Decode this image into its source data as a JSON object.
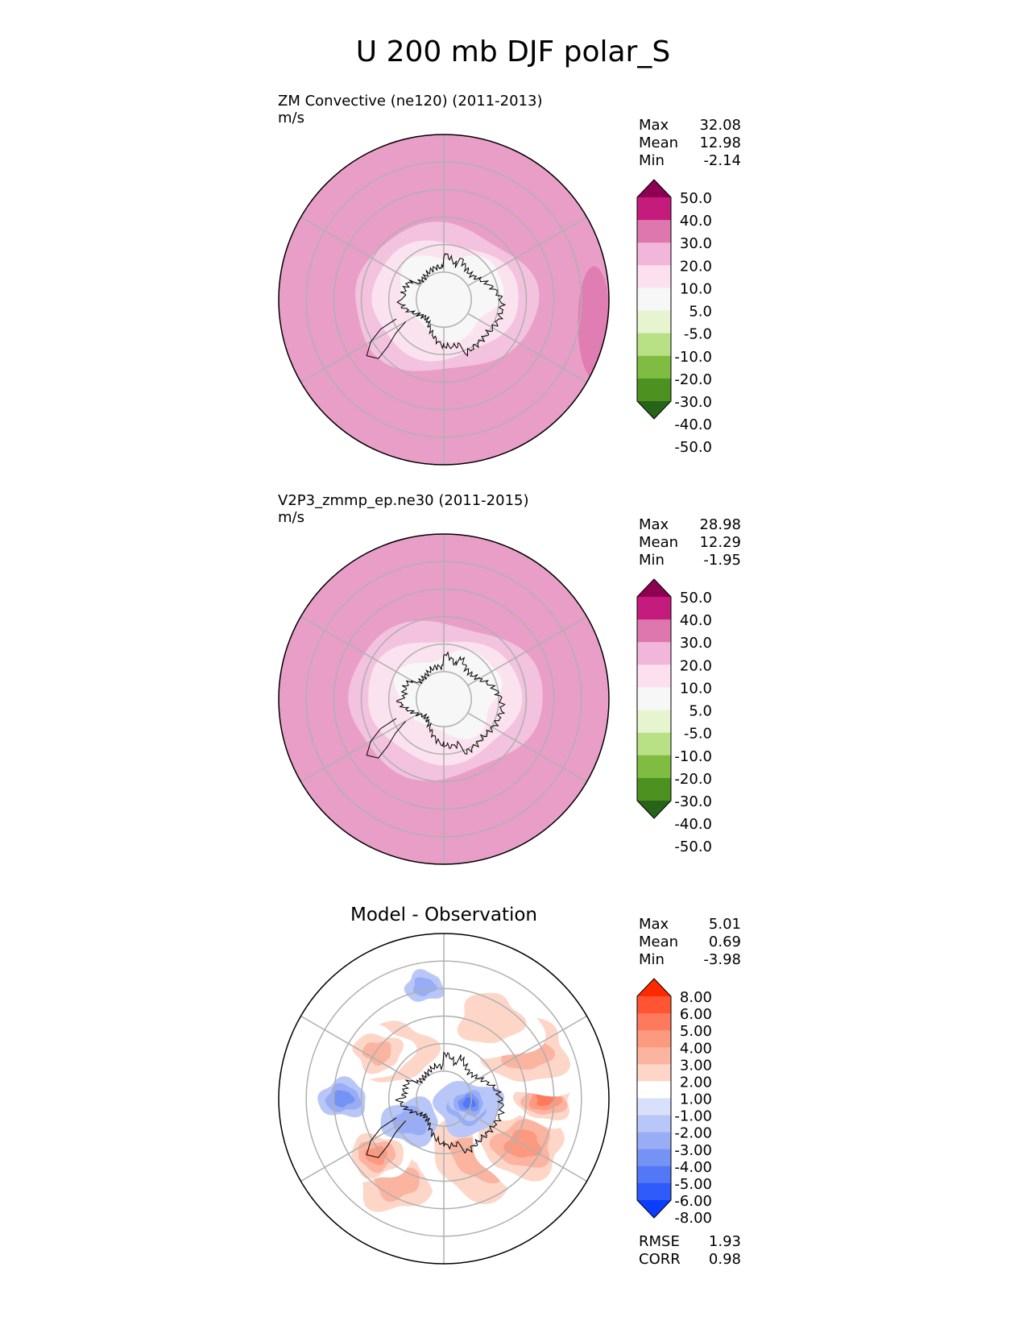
{
  "figure": {
    "title": "U 200 mb DJF polar_S"
  },
  "chart_data": [
    {
      "type": "heatmap",
      "projection": "south-polar-stereographic",
      "title": "ZM Convective (ne120) (2011-2013)",
      "units": "m/s",
      "stats": [
        {
          "label": "Max",
          "value": "32.08"
        },
        {
          "label": "Mean",
          "value": "12.98"
        },
        {
          "label": "Min",
          "value": "-2.14"
        }
      ],
      "colorbar": {
        "labels": [
          "50.0",
          "40.0",
          "30.0",
          "20.0",
          "10.0",
          "5.0",
          "-5.0",
          "-10.0",
          "-20.0",
          "-30.0",
          "-40.0",
          "-50.0"
        ],
        "colors": [
          "#8e0152",
          "#c51b7d",
          "#de77ae",
          "#f1b6da",
          "#fde0ef",
          "#f7f7f7",
          "#e6f5d0",
          "#b8e186",
          "#7fbc41",
          "#4d9221",
          "#276419"
        ]
      },
      "field": {
        "color_bands": [
          "#e99ec8",
          "#f3c2de",
          "#fbe2ef",
          "#f7f7f7"
        ],
        "band_edges_colat_deg": [
          65,
          50,
          40,
          28
        ],
        "pole_blob": "#f7f7f7"
      },
      "grid": true,
      "coastline": "Antarctica"
    },
    {
      "type": "heatmap",
      "projection": "south-polar-stereographic",
      "title": "V2P3_zmmp_ep.ne30 (2011-2015)",
      "units": "m/s",
      "stats": [
        {
          "label": "Max",
          "value": "28.98"
        },
        {
          "label": "Mean",
          "value": "12.29"
        },
        {
          "label": "Min",
          "value": "-1.95"
        }
      ],
      "colorbar": {
        "labels": [
          "50.0",
          "40.0",
          "30.0",
          "20.0",
          "10.0",
          "5.0",
          "-5.0",
          "-10.0",
          "-20.0",
          "-30.0",
          "-40.0",
          "-50.0"
        ],
        "colors": [
          "#8e0152",
          "#c51b7d",
          "#de77ae",
          "#f1b6da",
          "#fde0ef",
          "#f7f7f7",
          "#e6f5d0",
          "#b8e186",
          "#7fbc41",
          "#4d9221",
          "#276419"
        ]
      },
      "field": {
        "color_bands": [
          "#e99ec8",
          "#f3c2de",
          "#fbe2ef",
          "#f7f7f7"
        ],
        "band_edges_colat_deg": [
          65,
          53,
          42,
          28
        ],
        "pole_blob": "#f7f7f7"
      },
      "grid": true,
      "coastline": "Antarctica"
    },
    {
      "type": "heatmap",
      "projection": "south-polar-stereographic",
      "title": "Model - Observation",
      "units": "",
      "stats": [
        {
          "label": "Max",
          "value": "5.01"
        },
        {
          "label": "Mean",
          "value": "0.69"
        },
        {
          "label": "Min",
          "value": "-3.98"
        }
      ],
      "colorbar": {
        "labels": [
          "8.00",
          "6.00",
          "5.00",
          "4.00",
          "3.00",
          "2.00",
          "1.00",
          "-1.00",
          "-2.00",
          "-3.00",
          "-4.00",
          "-5.00",
          "-6.00",
          "-8.00"
        ],
        "colors": [
          "#ff2a00",
          "#ff5533",
          "#ff7a5c",
          "#fc9a80",
          "#fbb4a0",
          "#fdd6c8",
          "#ffffff",
          "#d8e0fb",
          "#b9c7f8",
          "#98adf5",
          "#7593f5",
          "#5277f7",
          "#2e5bf9",
          "#0a3dfc"
        ]
      },
      "bottom_stats": [
        {
          "label": "RMSE",
          "value": "1.93"
        },
        {
          "label": "CORR",
          "value": "0.98"
        }
      ],
      "field": {
        "anomalies": [
          {
            "lon": 330,
            "colat": 52,
            "r": 22,
            "value": 3
          },
          {
            "lon": 310,
            "colat": 48,
            "r": 14,
            "value": 4
          },
          {
            "lon": 35,
            "colat": 38,
            "r": 30,
            "value": 3
          },
          {
            "lon": 60,
            "colat": 50,
            "r": 22,
            "value": 4
          },
          {
            "lon": 90,
            "colat": 55,
            "r": 14,
            "value": 5
          },
          {
            "lon": 120,
            "colat": 52,
            "r": 24,
            "value": 3
          },
          {
            "lon": 150,
            "colat": 50,
            "r": 22,
            "value": 2
          },
          {
            "lon": 225,
            "colat": 36,
            "r": 26,
            "value": 2
          },
          {
            "lon": 235,
            "colat": 44,
            "r": 14,
            "value": 3
          },
          {
            "lon": 70,
            "colat": 14,
            "r": 14,
            "value": -2
          },
          {
            "lon": 80,
            "colat": 14,
            "r": 8,
            "value": -4
          },
          {
            "lon": 305,
            "colat": 22,
            "r": 12,
            "value": -2
          },
          {
            "lon": 270,
            "colat": 55,
            "r": 10,
            "value": -3
          },
          {
            "lon": 190,
            "colat": 62,
            "r": 8,
            "value": -2
          }
        ]
      },
      "grid": true,
      "coastline": "Antarctica"
    }
  ]
}
